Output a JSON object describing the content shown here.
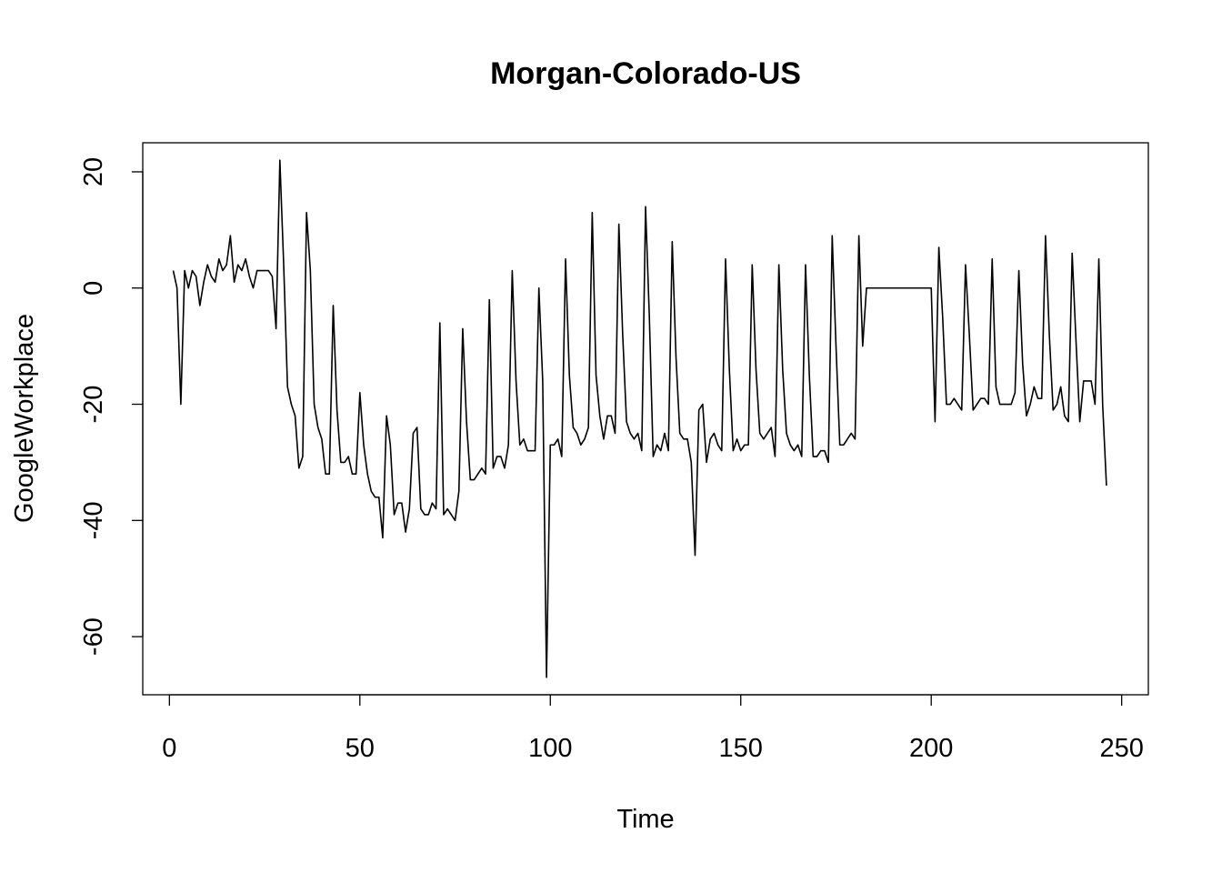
{
  "chart_data": {
    "type": "line",
    "title": "Morgan-Colorado-US",
    "xlabel": "Time",
    "ylabel": "GoogleWorkplace",
    "xlim": [
      -7,
      257
    ],
    "ylim": [
      -70,
      25
    ],
    "x_ticks": [
      0,
      50,
      100,
      150,
      200,
      250
    ],
    "y_ticks": [
      20,
      0,
      -20,
      -40,
      -60
    ],
    "grid": false,
    "series": [
      {
        "x_start": 1,
        "values": [
          3,
          0,
          -20,
          3,
          0,
          3,
          2,
          -3,
          1,
          4,
          2,
          1,
          5,
          3,
          4,
          9,
          1,
          4,
          3,
          5,
          2,
          0,
          3,
          3,
          3,
          3,
          2,
          -7,
          22,
          4,
          -17,
          -20,
          -22,
          -31,
          -29,
          13,
          3,
          -20,
          -24,
          -26,
          -32,
          -32,
          -3,
          -21,
          -30,
          -30,
          -29,
          -32,
          -32,
          -18,
          -27,
          -32,
          -35,
          -36,
          -36,
          -43,
          -22,
          -27,
          -39,
          -37,
          -37,
          -42,
          -38,
          -25,
          -24,
          -38,
          -39,
          -39,
          -37,
          -38,
          -6,
          -39,
          -38,
          -39,
          -40,
          -35,
          -7,
          -23,
          -33,
          -33,
          -32,
          -31,
          -32,
          -2,
          -31,
          -29,
          -29,
          -31,
          -27,
          3,
          -16,
          -27,
          -26,
          -28,
          -28,
          -28,
          0,
          -16,
          -67,
          -27,
          -27,
          -26,
          -29,
          5,
          -15,
          -24,
          -25,
          -27,
          -26,
          -24,
          13,
          -15,
          -22,
          -26,
          -22,
          -22,
          -25,
          11,
          -8,
          -23,
          -25,
          -26,
          -25,
          -28,
          14,
          -5,
          -29,
          -27,
          -28,
          -25,
          -28,
          8,
          -12,
          -25,
          -26,
          -26,
          -30,
          -46,
          -21,
          -20,
          -30,
          -26,
          -25,
          -27,
          -28,
          5,
          -14,
          -28,
          -26,
          -28,
          -27,
          -27,
          4,
          -14,
          -25,
          -26,
          -25,
          -24,
          -29,
          4,
          -14,
          -25,
          -27,
          -28,
          -27,
          -29,
          4,
          -15,
          -29,
          -29,
          -28,
          -28,
          -30,
          9,
          -10,
          -27,
          -27,
          -26,
          -25,
          -26,
          9,
          -10,
          0,
          0,
          0,
          0,
          0,
          0,
          0,
          0,
          0,
          0,
          0,
          0,
          0,
          0,
          0,
          0,
          0,
          0,
          -23,
          7,
          -5,
          -20,
          -20,
          -19,
          -20,
          -21,
          4,
          -8,
          -21,
          -20,
          -19,
          -19,
          -20,
          5,
          -17,
          -20,
          -20,
          -20,
          -20,
          -18,
          3,
          -13,
          -22,
          -20,
          -17,
          -19,
          -19,
          9,
          -8,
          -21,
          -20,
          -17,
          -22,
          -23,
          6,
          -9,
          -23,
          -16,
          -16,
          -16,
          -20,
          5,
          -20,
          -34
        ]
      }
    ]
  }
}
